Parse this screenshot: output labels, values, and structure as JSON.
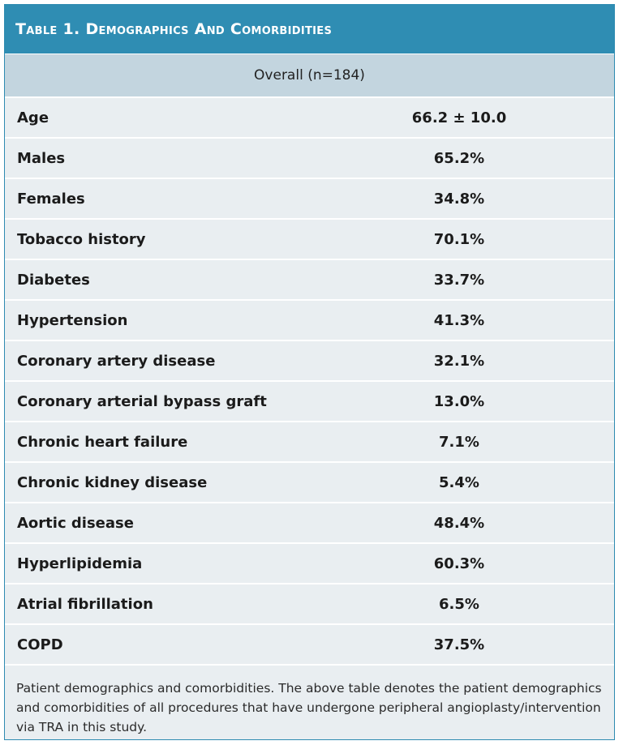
{
  "table": {
    "title": "Table 1. Demographics And Comorbidities",
    "column_header": "Overall (n=184)",
    "rows": [
      {
        "label": "Age",
        "value": "66.2 ± 10.0"
      },
      {
        "label": "Males",
        "value": "65.2%"
      },
      {
        "label": "Females",
        "value": "34.8%"
      },
      {
        "label": "Tobacco history",
        "value": "70.1%"
      },
      {
        "label": "Diabetes",
        "value": "33.7%"
      },
      {
        "label": "Hypertension",
        "value": "41.3%"
      },
      {
        "label": "Coronary artery disease",
        "value": "32.1%"
      },
      {
        "label": "Coronary arterial bypass graft",
        "value": "13.0%"
      },
      {
        "label": "Chronic heart failure",
        "value": "7.1%"
      },
      {
        "label": "Chronic kidney disease",
        "value": "5.4%"
      },
      {
        "label": "Aortic disease",
        "value": "48.4%"
      },
      {
        "label": "Hyperlipidemia",
        "value": "60.3%"
      },
      {
        "label": "Atrial fibrillation",
        "value": "6.5%"
      },
      {
        "label": "COPD",
        "value": "37.5%"
      }
    ],
    "caption": "Patient demographics and comorbidities. The above table denotes the patient demographics and comorbidities of all procedures that have undergone peripheral angioplasty/intervention via TRA in this study."
  },
  "colors": {
    "title_bg": "#2f8db3",
    "header_bg": "#c3d5df",
    "row_bg": "#e9eef1"
  }
}
